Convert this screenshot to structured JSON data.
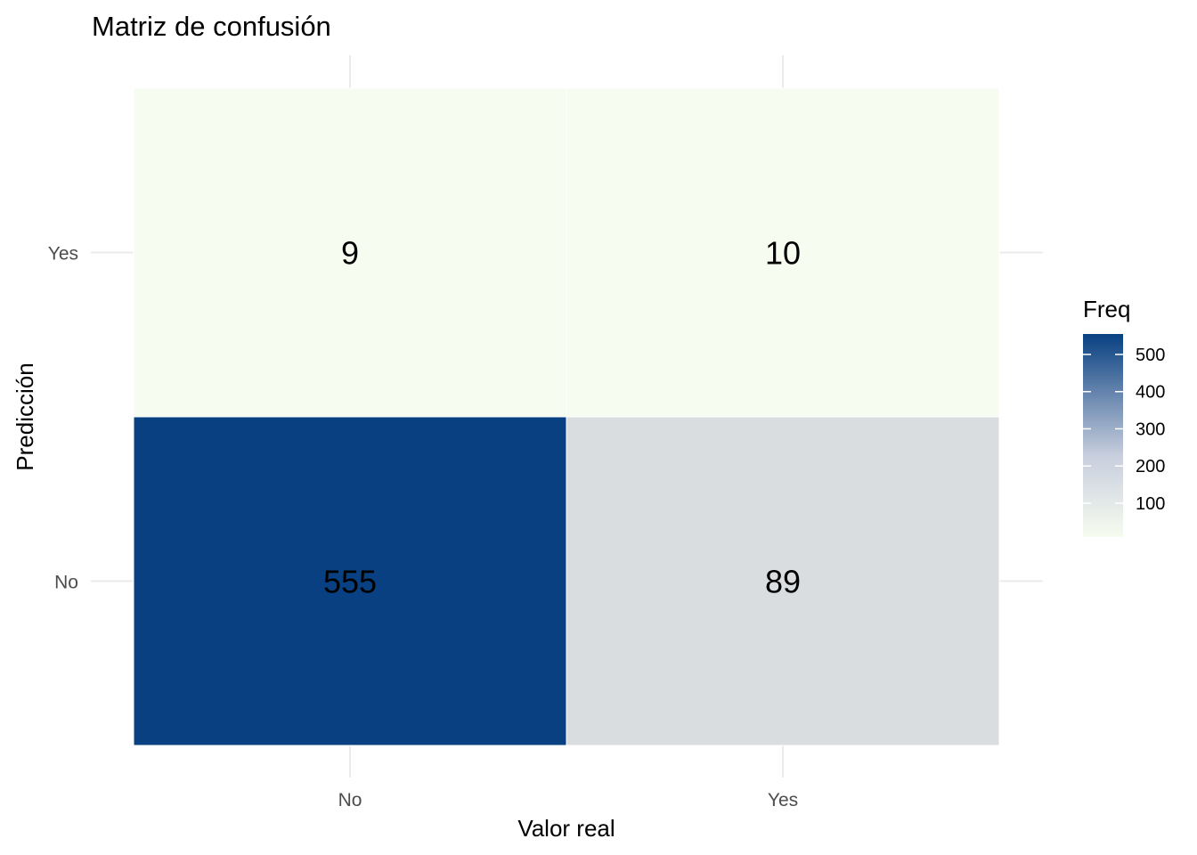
{
  "chart_data": {
    "type": "heatmap",
    "title": "Matriz de confusión",
    "xlabel": "Valor real",
    "ylabel": "Predicción",
    "x_categories": [
      "No",
      "Yes"
    ],
    "y_categories": [
      "No",
      "Yes"
    ],
    "cells": [
      {
        "x": "No",
        "y": "No",
        "value": 555
      },
      {
        "x": "Yes",
        "y": "No",
        "value": 89
      },
      {
        "x": "No",
        "y": "Yes",
        "value": 9
      },
      {
        "x": "Yes",
        "y": "Yes",
        "value": 10
      }
    ],
    "legend": {
      "title": "Freq",
      "ticks": [
        100,
        200,
        300,
        400,
        500
      ],
      "range": [
        9,
        555
      ],
      "low_color": "#f7fcf0",
      "high_color": "#084081"
    },
    "grid": true,
    "legend_position": "right"
  }
}
